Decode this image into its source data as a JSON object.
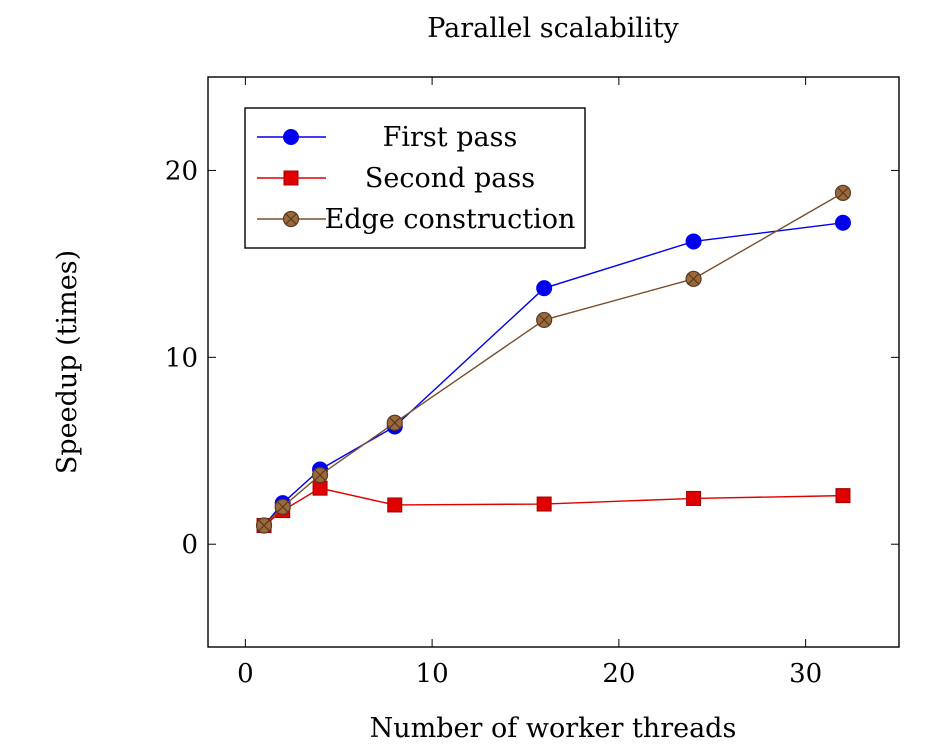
{
  "chart_data": {
    "type": "line",
    "title": "Parallel scalability",
    "xlabel": "Number of worker threads",
    "ylabel": "Speedup (times)",
    "xlim": [
      -2,
      35
    ],
    "ylim": [
      -5.5,
      25
    ],
    "xticks": [
      0,
      10,
      20,
      30
    ],
    "yticks": [
      0,
      10,
      20
    ],
    "grid": false,
    "legend_position": "top-left",
    "series": [
      {
        "name": "First pass",
        "color": "#0000ee",
        "marker": "circle",
        "x": [
          1,
          2,
          4,
          8,
          16,
          24,
          32
        ],
        "y": [
          1.0,
          2.2,
          4.0,
          6.3,
          13.7,
          16.2,
          17.2
        ]
      },
      {
        "name": "Second pass",
        "color": "#e00000",
        "marker": "square",
        "x": [
          1,
          2,
          4,
          8,
          16,
          24,
          32
        ],
        "y": [
          1.0,
          1.8,
          3.0,
          2.1,
          2.15,
          2.45,
          2.6
        ]
      },
      {
        "name": "Edge construction",
        "color": "#7a4e2a",
        "marker": "circle-x",
        "x": [
          1,
          2,
          4,
          8,
          16,
          24,
          32
        ],
        "y": [
          1.0,
          2.0,
          3.7,
          6.5,
          12.0,
          14.2,
          18.8
        ]
      }
    ]
  }
}
